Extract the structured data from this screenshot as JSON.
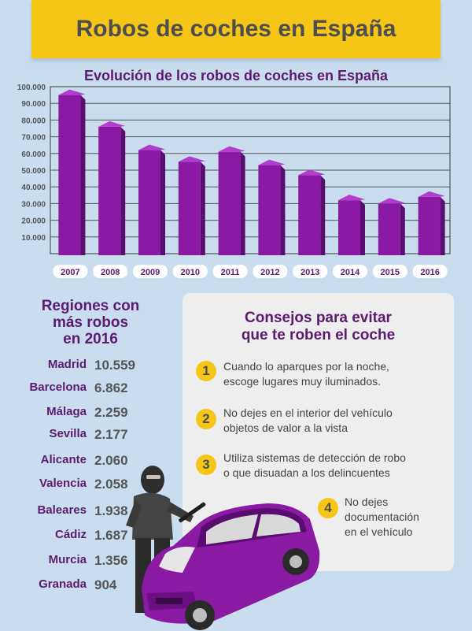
{
  "header": {
    "title": "Robos de coches en España"
  },
  "chart_data": {
    "type": "bar",
    "title": "Evolución de los robos de coches en España",
    "categories": [
      "2007",
      "2008",
      "2009",
      "2010",
      "2011",
      "2012",
      "2013",
      "2014",
      "2015",
      "2016"
    ],
    "values": [
      95000,
      76000,
      62000,
      55000,
      61000,
      53000,
      47000,
      32000,
      30000,
      34000
    ],
    "ylim": [
      0,
      100000
    ],
    "yticks": [
      10000,
      20000,
      30000,
      40000,
      50000,
      60000,
      70000,
      80000,
      90000,
      100000
    ],
    "ytick_labels": [
      "10.000",
      "20.000",
      "30.000",
      "40.000",
      "50.000",
      "60.000",
      "70.000",
      "80.000",
      "90.000",
      "100.000"
    ],
    "xlabel": "",
    "ylabel": "",
    "grid": true,
    "colors": {
      "bar_front": "#8a1aa3",
      "bar_side": "#5a0d70",
      "bar_top": "#b23ccd",
      "grid": "#555555",
      "year_text": "#5c1b71"
    }
  },
  "regions": {
    "title_lines": [
      "Regiones con",
      "más robos",
      "en 2016"
    ],
    "items": [
      {
        "name": "Madrid",
        "value": "10.559"
      },
      {
        "name": "Barcelona",
        "value": "6.862"
      },
      {
        "name": "Málaga",
        "value": "2.259"
      },
      {
        "name": "Sevilla",
        "value": "2.177"
      },
      {
        "name": "Alicante",
        "value": "2.060"
      },
      {
        "name": "Valencia",
        "value": "2.058"
      },
      {
        "name": "Baleares",
        "value": "1.938"
      },
      {
        "name": "Cádiz",
        "value": "1.687"
      },
      {
        "name": "Murcia",
        "value": "1.356"
      },
      {
        "name": "Granada",
        "value": "904"
      }
    ]
  },
  "tips": {
    "title_lines": [
      "Consejos para evitar",
      "que te roben el coche"
    ],
    "items": [
      {
        "num": "1",
        "lines": [
          "Cuando lo aparques por la noche,",
          "escoge lugares muy iluminados."
        ]
      },
      {
        "num": "2",
        "lines": [
          "No dejes en el interior del vehículo",
          "objetos de valor a la vista"
        ]
      },
      {
        "num": "3",
        "lines": [
          "Utiliza sistemas de detección de robo",
          "o que disuadan a los delincuentes"
        ]
      },
      {
        "num": "4",
        "lines": [
          "No dejes",
          "documentación",
          "en el vehículo"
        ]
      }
    ]
  },
  "colors": {
    "background": "#c9ddef",
    "accent": "#f5c518",
    "purple": "#5c1b71"
  }
}
